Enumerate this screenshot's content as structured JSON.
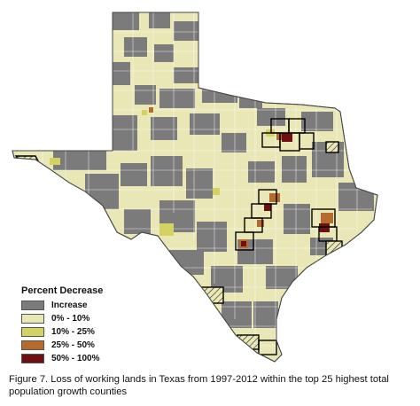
{
  "legend": {
    "title": "Percent Decrease",
    "items": [
      {
        "label": "Increase",
        "color": "#7b7b7b"
      },
      {
        "label": "0% - 10%",
        "color": "#e9e7b5"
      },
      {
        "label": "10% - 25%",
        "color": "#d4d264"
      },
      {
        "label": "25% - 50%",
        "color": "#b66a2e"
      },
      {
        "label": "50% - 100%",
        "color": "#6e1010"
      }
    ]
  },
  "caption": "Figure 7. Loss of working lands in Texas from 1997-2012 within the top 25 highest total population growth counties",
  "colors": {
    "increase": "#7b7b7b",
    "low": "#e9e7b5",
    "mid": "#d4d264",
    "high": "#b66a2e",
    "severe": "#6e1010",
    "county_border": "#ffffff",
    "highlight_outline": "#000000"
  }
}
